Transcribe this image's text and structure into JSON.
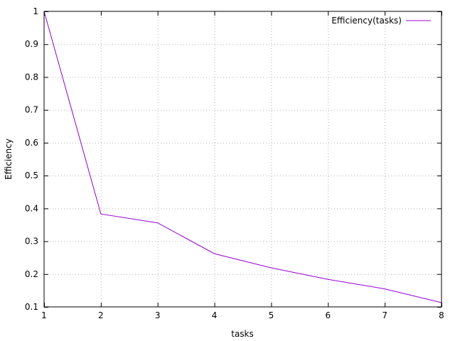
{
  "chart_data": {
    "type": "line",
    "title": "",
    "xlabel": "tasks",
    "ylabel": "Efficiency",
    "xlim": [
      1,
      8
    ],
    "ylim": [
      0.1,
      1
    ],
    "xticks": [
      1,
      2,
      3,
      4,
      5,
      6,
      7,
      8
    ],
    "yticks": [
      0.1,
      0.2,
      0.3,
      0.4,
      0.5,
      0.6,
      0.7,
      0.8,
      0.9,
      1
    ],
    "ytick_labels": [
      "0.1",
      "0.2",
      "0.3",
      "0.4",
      "0.5",
      "0.6",
      "0.7",
      "0.8",
      "0.9",
      "1"
    ],
    "grid": true,
    "legend_position": "top-right",
    "series": [
      {
        "name": "Efficiency(tasks)",
        "color": "#9400d3",
        "x": [
          1,
          2,
          3,
          4,
          5,
          6,
          7,
          8
        ],
        "y": [
          1.0,
          0.383,
          0.356,
          0.262,
          0.219,
          0.184,
          0.155,
          0.113
        ]
      }
    ]
  }
}
